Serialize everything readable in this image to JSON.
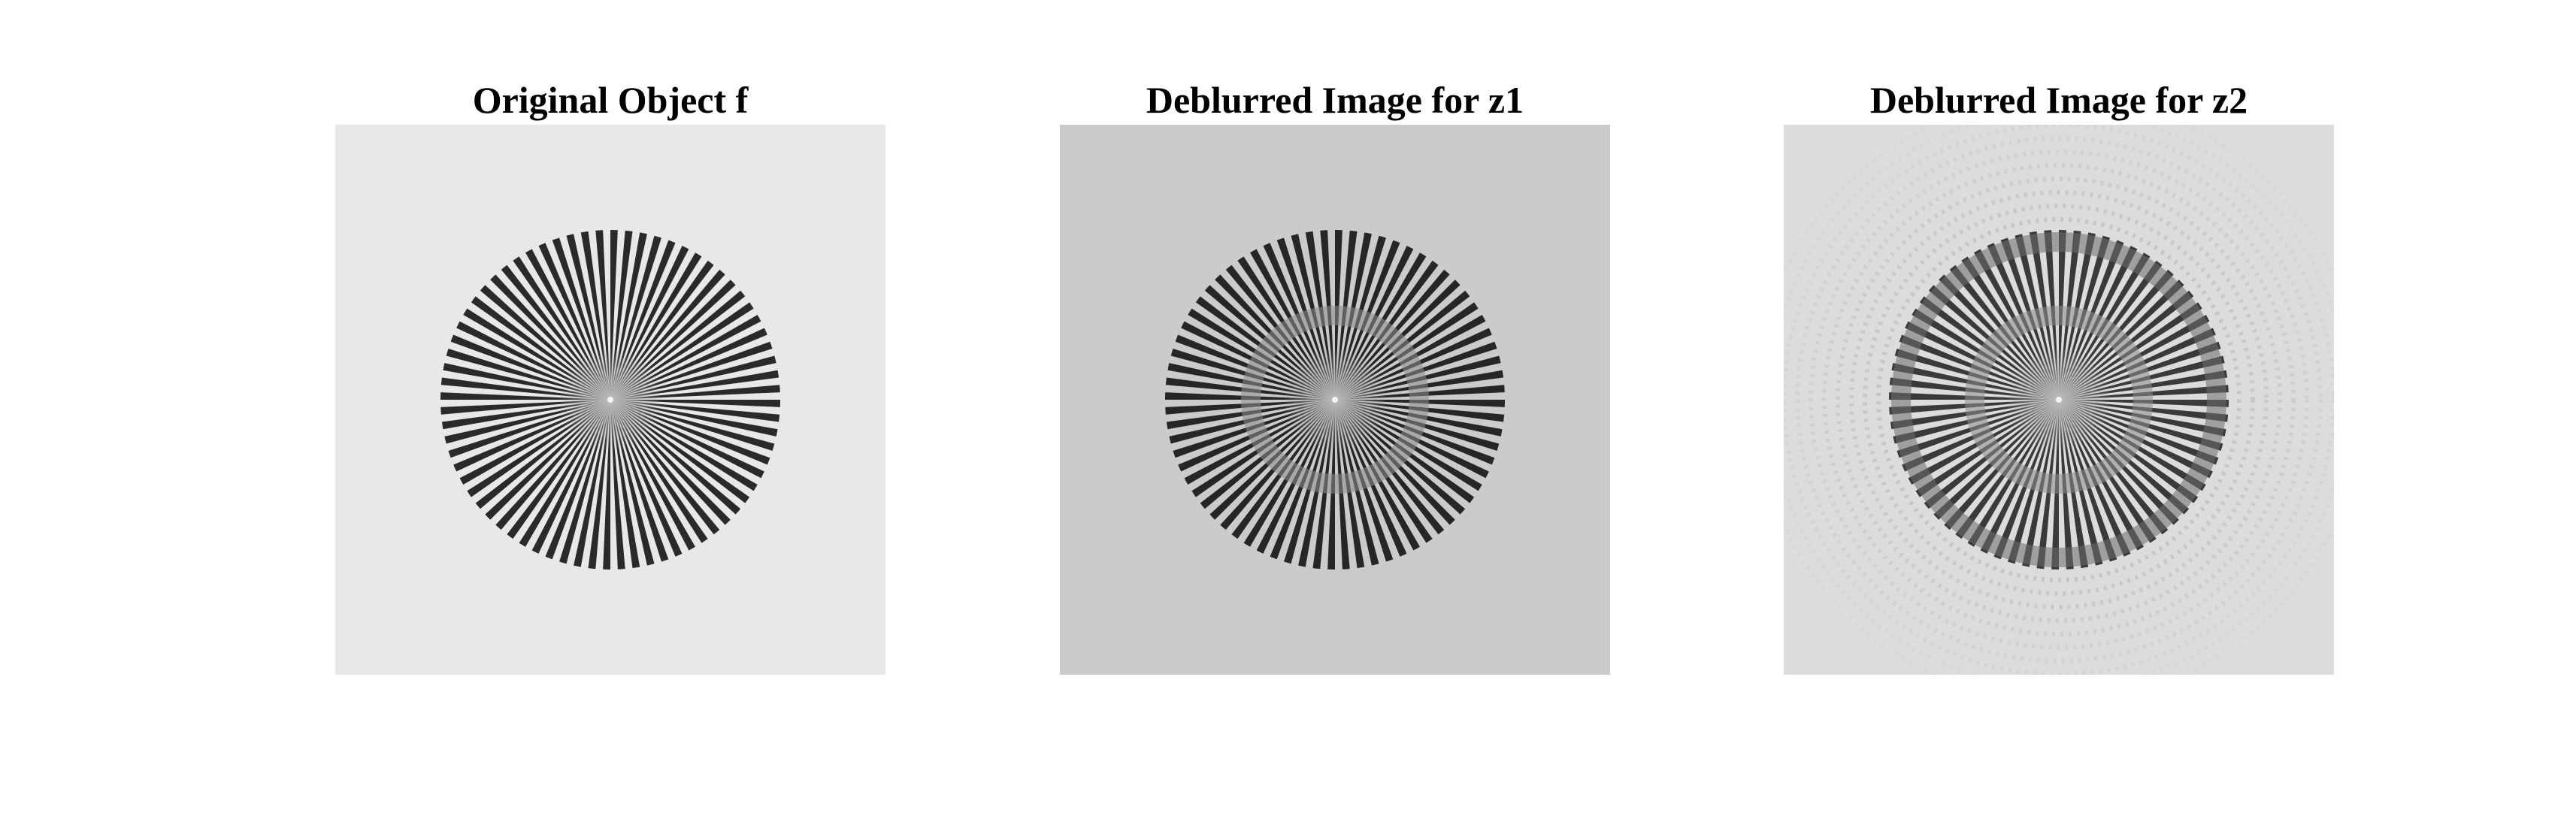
{
  "figure": {
    "panels": [
      {
        "title": "Original Object f",
        "image": {
          "kind": "siemens-star",
          "background": "#e8e8e8",
          "spoke_color": "#2a2a2a",
          "spokes": 72,
          "artifacts": "none"
        }
      },
      {
        "title": "Deblurred Image for z1",
        "image": {
          "kind": "siemens-star",
          "background": "#cbcbcb",
          "spoke_color": "#262626",
          "spokes": 72,
          "artifacts": "gray-ring"
        }
      },
      {
        "title": "Deblurred Image for z2",
        "image": {
          "kind": "siemens-star",
          "background": "#dcdcdc",
          "spoke_color": "#3a3a3a",
          "spokes": 72,
          "artifacts": "ringing"
        }
      }
    ]
  }
}
